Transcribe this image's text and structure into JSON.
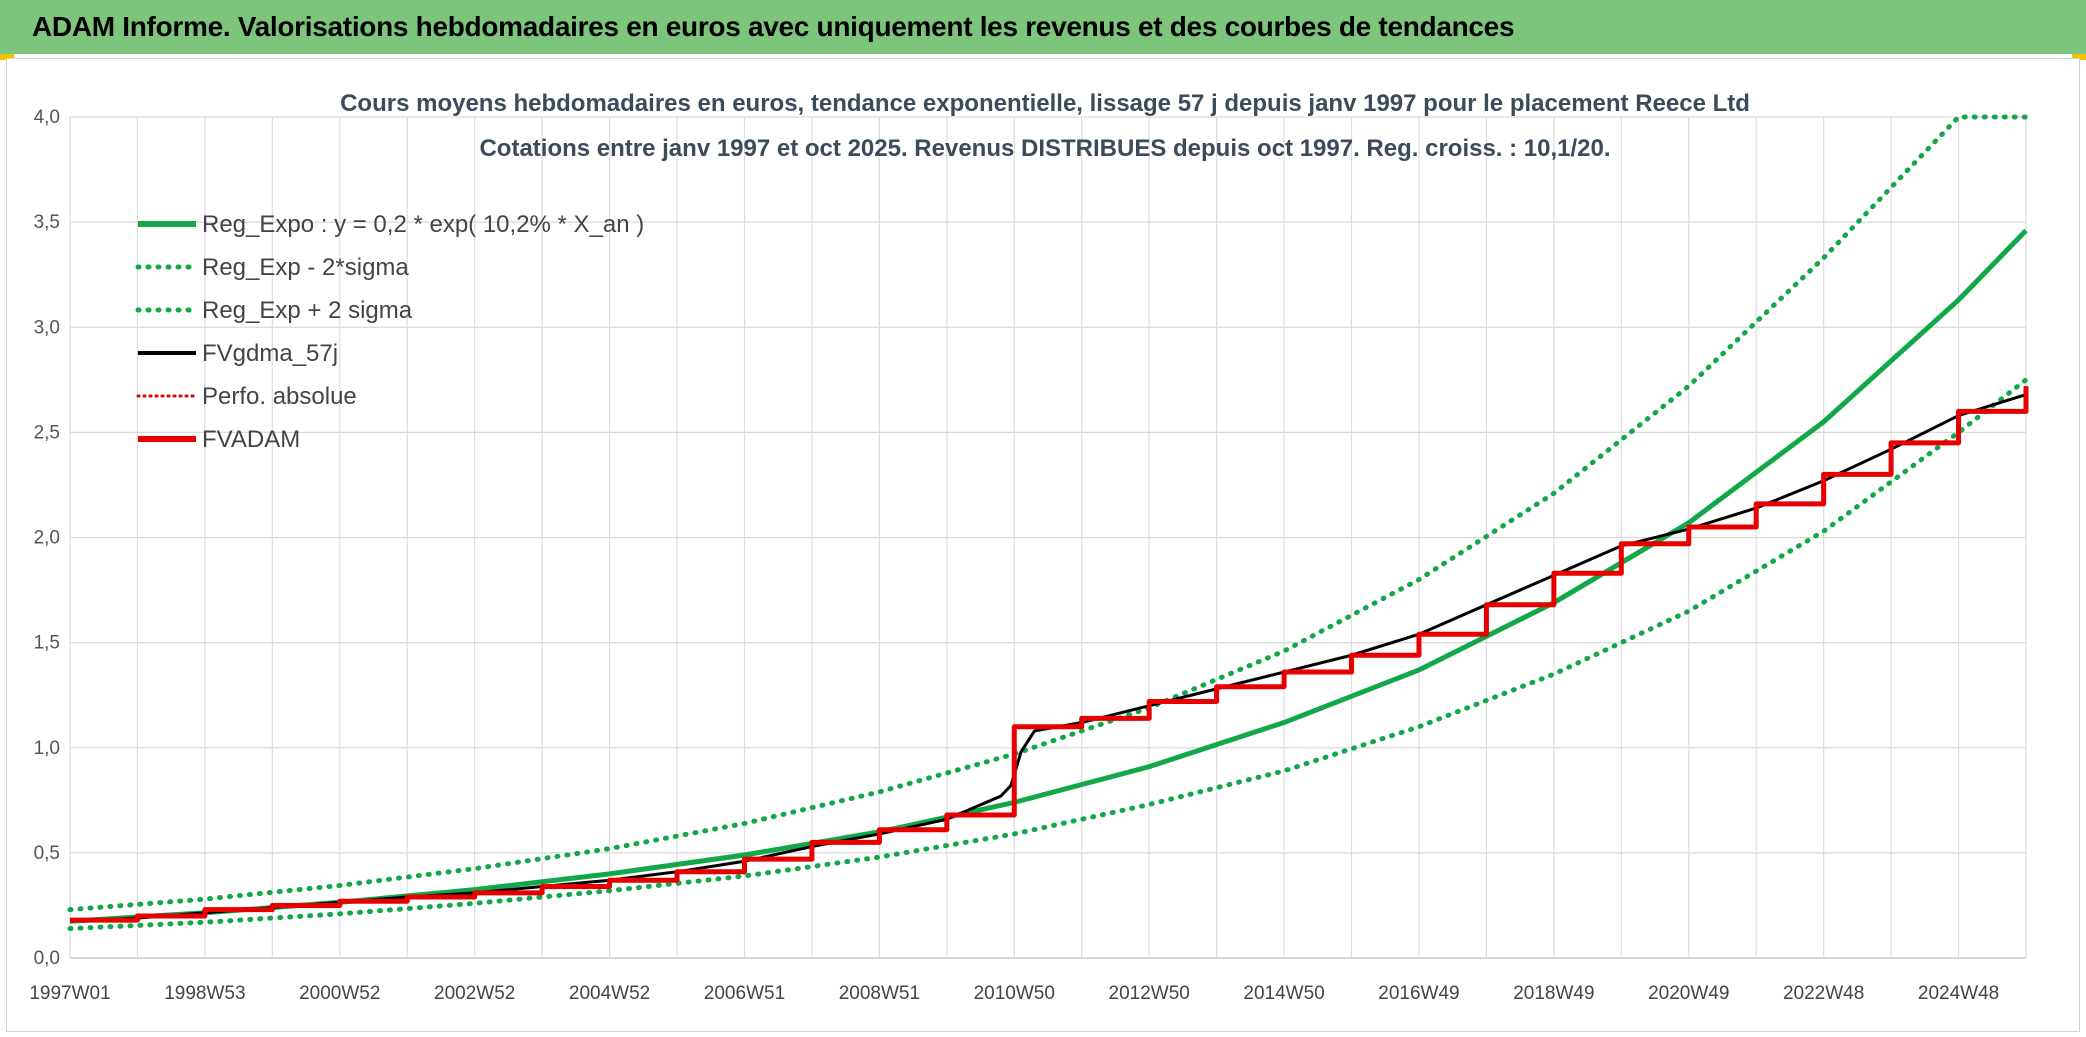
{
  "header": {
    "title": "ADAM Informe. Valorisations hebdomadaires en euros avec uniquement les revenus et des courbes de tendances"
  },
  "chart_data": {
    "type": "line",
    "title_line1": "Cours moyens hebdomadaires en euros, tendance exponentielle, lissage 57 j depuis janv 1997 pour le placement Reece Ltd",
    "title_line2": "Cotations entre janv 1997 et oct 2025. Revenus DISTRIBUES depuis oct 1997. Reg. croiss. : 10,1/20.",
    "ylim": [
      0,
      4.0
    ],
    "yticks": [
      "0,0",
      "0,5",
      "1,0",
      "1,5",
      "2,0",
      "2,5",
      "3,0",
      "3,5",
      "4,0"
    ],
    "xlim": [
      1997.0,
      2026.0
    ],
    "xticks": [
      {
        "label": "1997W01",
        "x": 1997.0
      },
      {
        "label": "1998W53",
        "x": 1999.0
      },
      {
        "label": "2000W52",
        "x": 2001.0
      },
      {
        "label": "2002W52",
        "x": 2003.0
      },
      {
        "label": "2004W52",
        "x": 2005.0
      },
      {
        "label": "2006W51",
        "x": 2007.0
      },
      {
        "label": "2008W51",
        "x": 2009.0
      },
      {
        "label": "2010W50",
        "x": 2011.0
      },
      {
        "label": "2012W50",
        "x": 2013.0
      },
      {
        "label": "2014W50",
        "x": 2015.0
      },
      {
        "label": "2016W49",
        "x": 2017.0
      },
      {
        "label": "2018W49",
        "x": 2019.0
      },
      {
        "label": "2020W49",
        "x": 2021.0
      },
      {
        "label": "2022W48",
        "x": 2023.0
      },
      {
        "label": "2024W48",
        "x": 2025.0
      }
    ],
    "grid": true,
    "legend_position": "top-left",
    "series": [
      {
        "name": "Reg_Expo : y = 0,2 * exp( 10,2% *  X_an )",
        "color": "#12a84a",
        "style": "solid",
        "x": [
          1997,
          1999,
          2001,
          2003,
          2005,
          2007,
          2009,
          2011,
          2013,
          2015,
          2017,
          2019,
          2021,
          2023,
          2025,
          2026
        ],
        "y": [
          0.175,
          0.215,
          0.265,
          0.325,
          0.4,
          0.49,
          0.6,
          0.74,
          0.91,
          1.12,
          1.37,
          1.69,
          2.07,
          2.55,
          3.13,
          3.46
        ]
      },
      {
        "name": "Reg_Exp - 2*sigma",
        "color": "#12a84a",
        "style": "dotted",
        "x": [
          1997,
          1999,
          2001,
          2003,
          2005,
          2007,
          2009,
          2011,
          2013,
          2015,
          2017,
          2019,
          2021,
          2023,
          2025,
          2026
        ],
        "y": [
          0.14,
          0.17,
          0.21,
          0.26,
          0.32,
          0.39,
          0.48,
          0.59,
          0.73,
          0.89,
          1.1,
          1.35,
          1.65,
          2.03,
          2.5,
          2.75
        ]
      },
      {
        "name": "Reg_Exp + 2 sigma",
        "color": "#12a84a",
        "style": "dotted",
        "x": [
          1997,
          1999,
          2001,
          2003,
          2005,
          2007,
          2009,
          2011,
          2013,
          2015,
          2017,
          2019,
          2021,
          2023,
          2025,
          2026
        ],
        "y": [
          0.23,
          0.28,
          0.345,
          0.425,
          0.52,
          0.64,
          0.79,
          0.97,
          1.19,
          1.46,
          1.8,
          2.21,
          2.72,
          3.33,
          4.0,
          4.0
        ]
      },
      {
        "name": "FVgdma_57j",
        "color": "#000000",
        "style": "solid",
        "x": [
          1997,
          1998,
          1999,
          2000,
          2001,
          2002,
          2003,
          2004,
          2005,
          2006,
          2007,
          2008,
          2009,
          2010,
          2010.8,
          2010.95,
          2011.1,
          2011.3,
          2012,
          2013,
          2014,
          2015,
          2016,
          2017,
          2018,
          2019,
          2020,
          2021,
          2022,
          2023,
          2024,
          2025,
          2026
        ],
        "y": [
          0.175,
          0.19,
          0.215,
          0.24,
          0.265,
          0.29,
          0.31,
          0.34,
          0.37,
          0.41,
          0.46,
          0.53,
          0.59,
          0.66,
          0.77,
          0.82,
          0.98,
          1.08,
          1.12,
          1.2,
          1.28,
          1.36,
          1.44,
          1.54,
          1.68,
          1.82,
          1.96,
          2.04,
          2.14,
          2.27,
          2.42,
          2.58,
          2.68
        ]
      },
      {
        "name": "Perfo. absolue",
        "color": "#e00000",
        "style": "dotted",
        "x": [],
        "y": []
      },
      {
        "name": "FVADAM",
        "color": "#e80000",
        "style": "step",
        "x": [
          1997,
          1998,
          1999,
          2000,
          2001,
          2002,
          2003,
          2004,
          2005,
          2006,
          2007,
          2008,
          2009,
          2010,
          2011,
          2012,
          2013,
          2014,
          2015,
          2016,
          2017,
          2018,
          2019,
          2020,
          2021,
          2022,
          2023,
          2024,
          2025,
          2026
        ],
        "y": [
          0.18,
          0.2,
          0.23,
          0.25,
          0.27,
          0.29,
          0.31,
          0.34,
          0.37,
          0.41,
          0.47,
          0.55,
          0.61,
          0.68,
          1.1,
          1.14,
          1.22,
          1.29,
          1.36,
          1.44,
          1.54,
          1.68,
          1.83,
          1.97,
          2.05,
          2.16,
          2.3,
          2.45,
          2.6,
          2.72
        ]
      }
    ]
  }
}
